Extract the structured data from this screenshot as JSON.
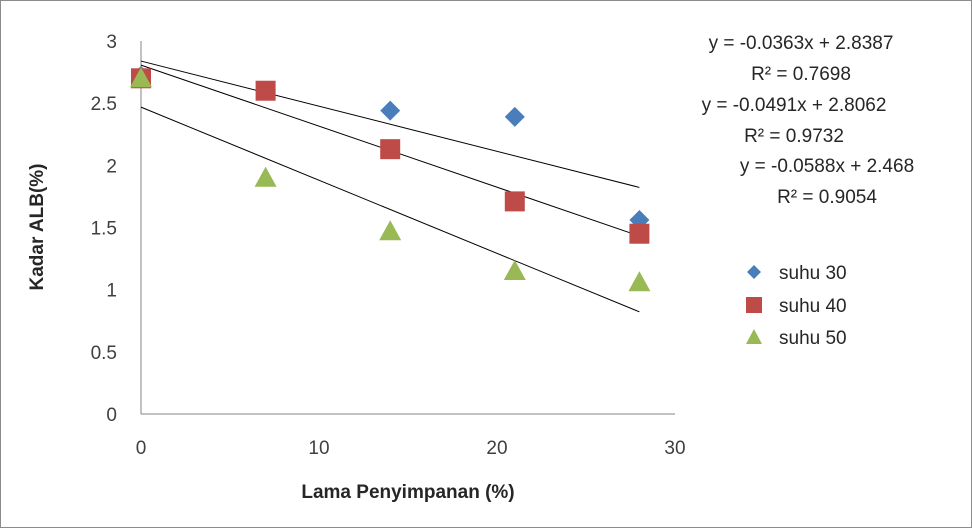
{
  "chart_data": {
    "type": "scatter",
    "xlabel": "Lama Penyimpanan (%)",
    "ylabel": "Kadar ALB(%)",
    "xlim": [
      0,
      30
    ],
    "ylim": [
      0,
      3
    ],
    "x_ticks": [
      "0",
      "10",
      "20",
      "30"
    ],
    "y_ticks": [
      "0",
      "0.5",
      "1",
      "1.5",
      "2",
      "2.5",
      "3"
    ],
    "grid": false,
    "legend_position": "right",
    "series": [
      {
        "name": "suhu 30",
        "marker": "diamond",
        "color": "#4a7ebb",
        "x": [
          0,
          7,
          14,
          21,
          28
        ],
        "y": [
          2.72,
          2.6,
          2.44,
          2.39,
          1.56
        ],
        "trendline": {
          "slope": -0.0363,
          "intercept": 2.8387
        },
        "equation": "y = -0.0363x + 2.8387",
        "r2": "R² = 0.7698"
      },
      {
        "name": "suhu 40",
        "marker": "square",
        "color": "#be4b48",
        "x": [
          0,
          7,
          14,
          21,
          28
        ],
        "y": [
          2.7,
          2.6,
          2.13,
          1.71,
          1.45
        ],
        "trendline": {
          "slope": -0.0491,
          "intercept": 2.8062
        },
        "equation": "y = -0.0491x + 2.8062",
        "r2": "R² = 0.9732"
      },
      {
        "name": "suhu 50",
        "marker": "triangle",
        "color": "#98b954",
        "x": [
          0,
          7,
          14,
          21,
          28
        ],
        "y": [
          2.7,
          1.9,
          1.47,
          1.15,
          1.06
        ],
        "trendline": {
          "slope": -0.0588,
          "intercept": 2.468
        },
        "equation": "y = -0.0588x + 2.468",
        "r2": "R² = 0.9054"
      }
    ]
  }
}
